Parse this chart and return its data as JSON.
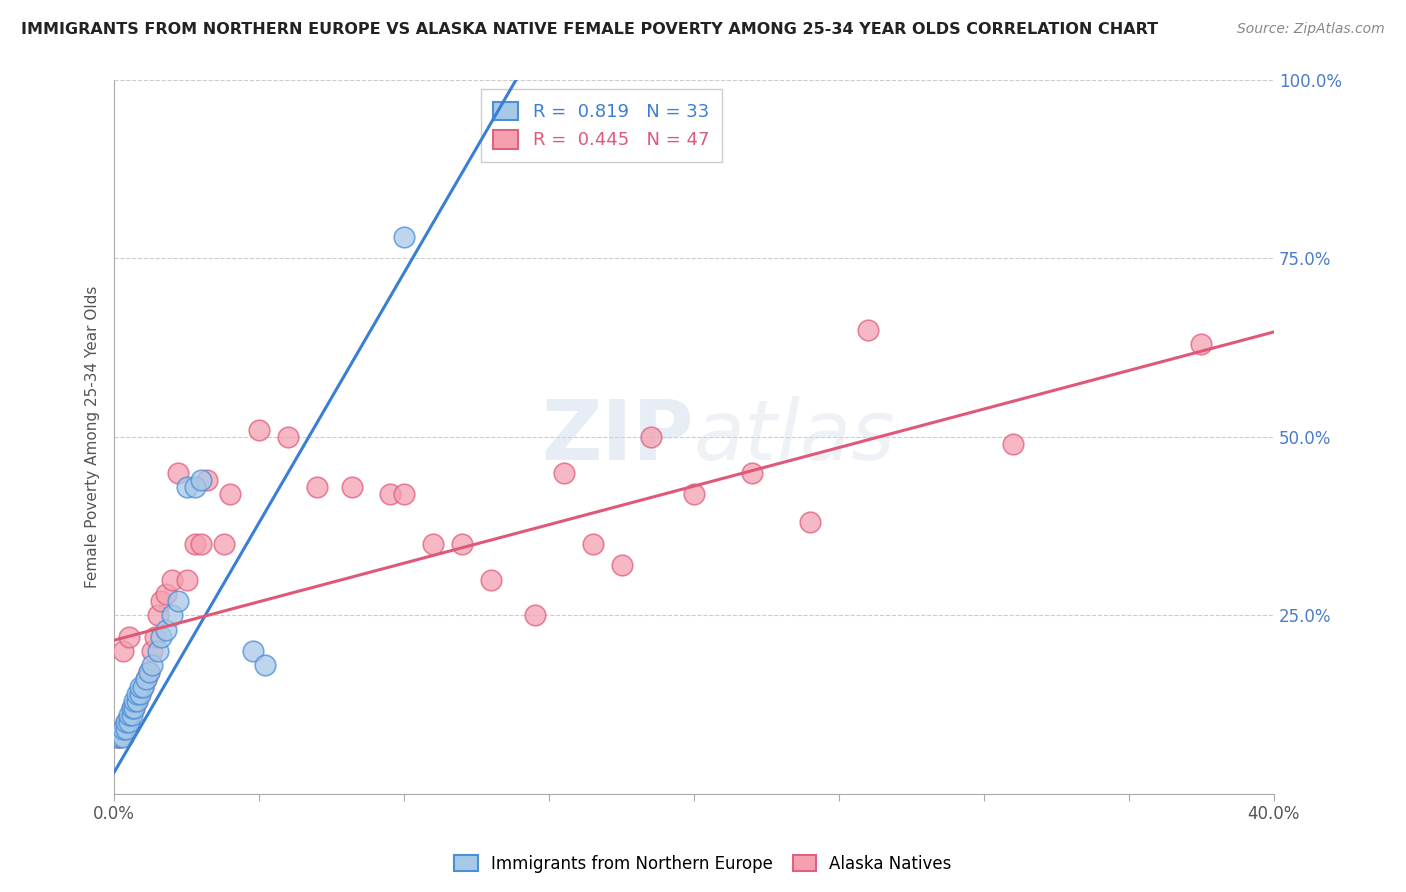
{
  "title": "IMMIGRANTS FROM NORTHERN EUROPE VS ALASKA NATIVE FEMALE POVERTY AMONG 25-34 YEAR OLDS CORRELATION CHART",
  "source": "Source: ZipAtlas.com",
  "ylabel": "Female Poverty Among 25-34 Year Olds",
  "xlim": [
    0.0,
    0.4
  ],
  "ylim": [
    0.0,
    1.0
  ],
  "xticks": [
    0.0,
    0.05,
    0.1,
    0.15,
    0.2,
    0.25,
    0.3,
    0.35,
    0.4
  ],
  "yticks": [
    0.0,
    0.25,
    0.5,
    0.75,
    1.0
  ],
  "blue_R": 0.819,
  "blue_N": 33,
  "pink_R": 0.445,
  "pink_N": 47,
  "blue_color": "#a8c8e8",
  "pink_color": "#f4a0b0",
  "blue_edge_color": "#4a90d9",
  "pink_edge_color": "#e06080",
  "blue_line_color": "#3a7fd5",
  "pink_line_color": "#e05878",
  "watermark_color": "#dce8f0",
  "blue_scatter_x": [
    0.001,
    0.002,
    0.003,
    0.003,
    0.004,
    0.004,
    0.005,
    0.005,
    0.006,
    0.006,
    0.007,
    0.007,
    0.008,
    0.008,
    0.009,
    0.009,
    0.01,
    0.011,
    0.012,
    0.013,
    0.015,
    0.016,
    0.018,
    0.02,
    0.022,
    0.025,
    0.028,
    0.03,
    0.048,
    0.052,
    0.1,
    0.15,
    0.175
  ],
  "blue_scatter_y": [
    0.08,
    0.08,
    0.08,
    0.09,
    0.09,
    0.1,
    0.1,
    0.11,
    0.11,
    0.12,
    0.12,
    0.13,
    0.13,
    0.14,
    0.14,
    0.15,
    0.15,
    0.16,
    0.17,
    0.18,
    0.2,
    0.22,
    0.23,
    0.25,
    0.27,
    0.43,
    0.43,
    0.44,
    0.2,
    0.18,
    0.78,
    0.96,
    0.96
  ],
  "pink_scatter_x": [
    0.001,
    0.002,
    0.003,
    0.003,
    0.004,
    0.005,
    0.005,
    0.006,
    0.007,
    0.008,
    0.009,
    0.01,
    0.011,
    0.012,
    0.013,
    0.014,
    0.015,
    0.016,
    0.018,
    0.02,
    0.022,
    0.025,
    0.028,
    0.03,
    0.032,
    0.038,
    0.04,
    0.05,
    0.06,
    0.07,
    0.082,
    0.095,
    0.1,
    0.11,
    0.12,
    0.13,
    0.145,
    0.155,
    0.165,
    0.175,
    0.185,
    0.2,
    0.22,
    0.24,
    0.26,
    0.31,
    0.375
  ],
  "pink_scatter_y": [
    0.08,
    0.08,
    0.09,
    0.2,
    0.1,
    0.1,
    0.22,
    0.12,
    0.12,
    0.13,
    0.14,
    0.15,
    0.16,
    0.17,
    0.2,
    0.22,
    0.25,
    0.27,
    0.28,
    0.3,
    0.45,
    0.3,
    0.35,
    0.35,
    0.44,
    0.35,
    0.42,
    0.51,
    0.5,
    0.43,
    0.43,
    0.42,
    0.42,
    0.35,
    0.35,
    0.3,
    0.25,
    0.45,
    0.35,
    0.32,
    0.5,
    0.42,
    0.45,
    0.38,
    0.65,
    0.49,
    0.63
  ]
}
